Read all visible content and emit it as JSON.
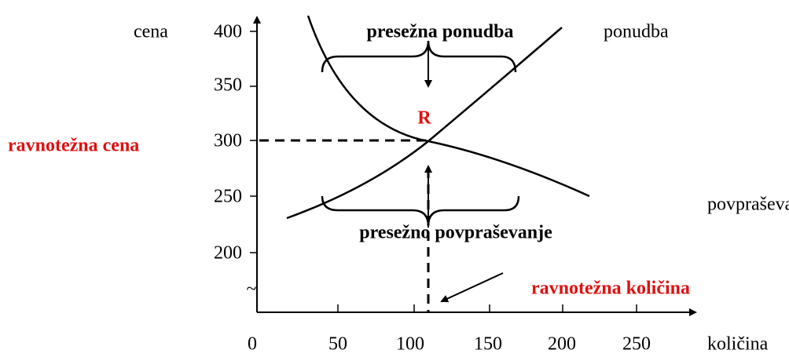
{
  "title_top": "presežna ponudba",
  "title_bottom": "presežno povpraševanje",
  "y_axis_label": "cena",
  "x_axis_label": "količina",
  "yticks": [
    "400",
    "350",
    "300",
    "250",
    "200"
  ],
  "xticks": [
    "0",
    "50",
    "100",
    "150",
    "200",
    "250"
  ],
  "axis_break": "~",
  "supply_label": "ponudba",
  "demand_label": "povpraševanje",
  "equilibrium_point": "R",
  "equilibrium_price": "ravnotežna cena",
  "equilibrium_quantity": "ravnotežna količina"
}
